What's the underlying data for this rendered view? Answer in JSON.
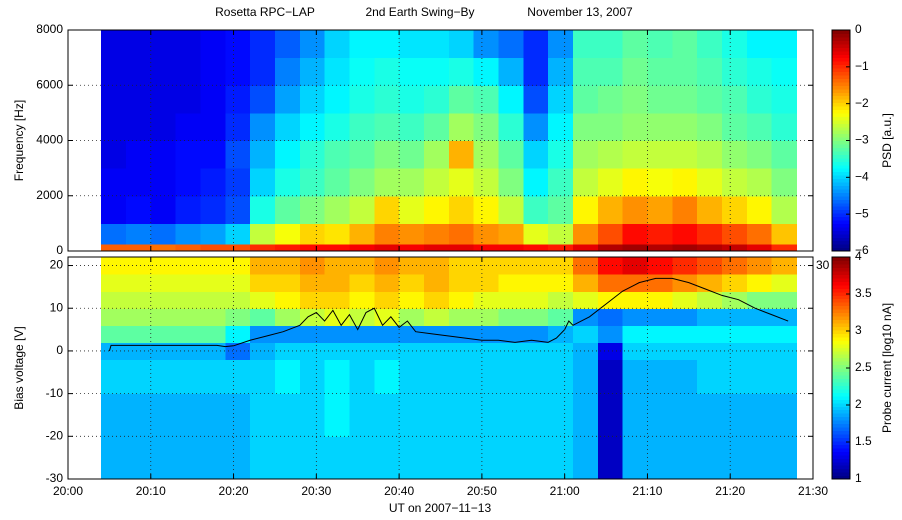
{
  "chart_data": [
    {
      "type": "heatmap",
      "title_parts": [
        "Rosetta RPC−LAP",
        "2nd Earth Swing−By",
        "November 13, 2007"
      ],
      "ylabel": "Frequency [Hz]",
      "colorbar_label": "PSD [a.u.]",
      "colormap": "jet",
      "grid": true,
      "xlim": [
        1200,
        1290
      ],
      "xticks": [
        1200,
        1210,
        1220,
        1230,
        1240,
        1250,
        1260,
        1270,
        1280,
        1290
      ],
      "ylim": [
        0,
        8000
      ],
      "yticks": [
        0,
        2000,
        4000,
        6000,
        8000
      ],
      "zlim": [
        -6,
        0
      ],
      "zticks": [
        0,
        {
          "value": -1,
          "label": "−1"
        },
        {
          "value": -2,
          "label": "−2"
        },
        {
          "value": -3,
          "label": "−3"
        },
        {
          "value": -4,
          "label": "−4"
        },
        {
          "value": -5,
          "label": "−5"
        },
        {
          "value": -6,
          "label": "−6"
        }
      ],
      "x_edges": [
        1204,
        1207,
        1210,
        1213,
        1216,
        1219,
        1222,
        1225,
        1228,
        1231,
        1234,
        1237,
        1240,
        1243,
        1246,
        1249,
        1252,
        1255,
        1258,
        1261,
        1264,
        1267,
        1270,
        1273,
        1276,
        1279,
        1282,
        1285,
        1288
      ],
      "y_edges": [
        0,
        250,
        1000,
        2000,
        3000,
        4000,
        5000,
        6000,
        7000,
        8000
      ],
      "z": [
        [
          -1.3,
          -4.6,
          -5.3,
          -5.3,
          -5.4,
          -5.4,
          -5.4,
          -5.4,
          -5.4
        ],
        [
          -1.3,
          -4.5,
          -5.2,
          -5.3,
          -5.3,
          -5.4,
          -5.4,
          -5.4,
          -5.4
        ],
        [
          -1.4,
          -4.6,
          -5.3,
          -5.3,
          -5.3,
          -5.4,
          -5.4,
          -5.4,
          -5.4
        ],
        [
          -1.3,
          -4.4,
          -5.1,
          -5.2,
          -5.2,
          -5.3,
          -5.4,
          -5.4,
          -5.4
        ],
        [
          -1.2,
          -4.3,
          -5.0,
          -5.1,
          -5.2,
          -5.3,
          -5.3,
          -5.3,
          -5.3
        ],
        [
          -1.2,
          -4.0,
          -4.8,
          -4.9,
          -4.8,
          -5.0,
          -5.1,
          -5.2,
          -5.2
        ],
        [
          -1.0,
          -2.6,
          -3.6,
          -4.0,
          -4.2,
          -4.4,
          -4.8,
          -5.0,
          -5.0
        ],
        [
          -0.9,
          -2.3,
          -3.2,
          -3.6,
          -3.8,
          -4.0,
          -4.3,
          -4.5,
          -4.7
        ],
        [
          -0.8,
          -2.0,
          -3.0,
          -3.4,
          -3.5,
          -3.8,
          -4.0,
          -4.2,
          -4.4
        ],
        [
          -0.8,
          -2.1,
          -2.8,
          -3.2,
          -3.3,
          -3.6,
          -3.8,
          -3.9,
          -4.0
        ],
        [
          -0.7,
          -1.8,
          -2.6,
          -3.0,
          -3.2,
          -3.4,
          -3.6,
          -3.7,
          -3.8
        ],
        [
          -0.6,
          -1.5,
          -2.0,
          -2.8,
          -3.0,
          -3.3,
          -3.5,
          -3.6,
          -3.8
        ],
        [
          -0.7,
          -1.6,
          -2.4,
          -2.8,
          -3.1,
          -3.4,
          -3.6,
          -3.7,
          -3.9
        ],
        [
          -0.6,
          -1.5,
          -2.2,
          -2.6,
          -2.8,
          -3.2,
          -3.5,
          -3.7,
          -3.9
        ],
        [
          -0.6,
          -1.4,
          -2.0,
          -2.4,
          -1.8,
          -2.8,
          -3.2,
          -3.6,
          -4.0
        ],
        [
          -0.7,
          -1.6,
          -2.2,
          -2.6,
          -2.8,
          -3.0,
          -3.3,
          -3.8,
          -4.4
        ],
        [
          -0.7,
          -1.7,
          -2.6,
          -3.0,
          -3.2,
          -3.5,
          -3.8,
          -4.2,
          -4.6
        ],
        [
          -0.8,
          -2.4,
          -3.4,
          -3.8,
          -4.0,
          -4.4,
          -4.8,
          -5.0,
          -5.0
        ],
        [
          -0.9,
          -2.6,
          -3.2,
          -3.4,
          -3.6,
          -3.8,
          -4.0,
          -4.2,
          -4.4
        ],
        [
          -0.6,
          -1.6,
          -2.2,
          -2.6,
          -2.8,
          -3.0,
          -3.2,
          -3.3,
          -3.4
        ],
        [
          -0.3,
          -1.2,
          -1.8,
          -2.4,
          -2.7,
          -3.0,
          -3.1,
          -3.3,
          -3.4
        ],
        [
          -0.2,
          -0.8,
          -1.6,
          -2.2,
          -2.6,
          -2.9,
          -3.0,
          -3.1,
          -3.2
        ],
        [
          -0.3,
          -0.9,
          -1.7,
          -2.3,
          -2.6,
          -2.9,
          -3.1,
          -3.2,
          -3.3
        ],
        [
          -0.2,
          -0.8,
          -1.5,
          -2.2,
          -2.6,
          -2.9,
          -3.1,
          -3.2,
          -3.2
        ],
        [
          -0.3,
          -1.0,
          -1.8,
          -2.4,
          -2.7,
          -3.0,
          -3.2,
          -3.3,
          -3.4
        ],
        [
          -0.4,
          -1.2,
          -2.0,
          -2.6,
          -2.9,
          -3.2,
          -3.3,
          -3.5,
          -3.6
        ],
        [
          -0.6,
          -1.4,
          -2.2,
          -2.7,
          -3.0,
          -3.3,
          -3.5,
          -3.6,
          -3.8
        ],
        [
          -1.0,
          -1.9,
          -2.7,
          -3.0,
          -3.2,
          -3.5,
          -3.6,
          -3.7,
          -3.8
        ]
      ]
    },
    {
      "type": "heatmap",
      "ylabel": "Bias voltage [V]",
      "xlabel": "UT on 2007−11−13",
      "colorbar_label": "Probe current [log10 nA]",
      "colormap": "jet",
      "grid": true,
      "xlim": [
        1200,
        1290
      ],
      "xticks": [
        {
          "value": 1200,
          "label": "20:00"
        },
        {
          "value": 1210,
          "label": "20:10"
        },
        {
          "value": 1220,
          "label": "20:20"
        },
        {
          "value": 1230,
          "label": "20:30"
        },
        {
          "value": 1240,
          "label": "20:40"
        },
        {
          "value": 1250,
          "label": "20:50"
        },
        {
          "value": 1260,
          "label": "21:00"
        },
        {
          "value": 1270,
          "label": "21:10"
        },
        {
          "value": 1280,
          "label": "21:20"
        },
        {
          "value": 1290,
          "label": "21:30"
        }
      ],
      "ylim": [
        -30,
        22
      ],
      "yticks": [
        -30,
        -20,
        -10,
        0,
        10,
        20
      ],
      "y2lim": [
        -30,
        30
      ],
      "y2ticks": [
        30
      ],
      "zlim": [
        1,
        4
      ],
      "zticks": [
        1,
        1.5,
        2,
        2.5,
        3,
        3.5,
        4
      ],
      "x_edges": [
        1204,
        1207,
        1210,
        1213,
        1216,
        1219,
        1222,
        1225,
        1228,
        1231,
        1234,
        1237,
        1240,
        1243,
        1246,
        1249,
        1252,
        1255,
        1258,
        1261,
        1264,
        1267,
        1270,
        1273,
        1276,
        1279,
        1282,
        1285,
        1288
      ],
      "y_edges": [
        -30,
        -20,
        -10,
        -2,
        2,
        6,
        10,
        14,
        18,
        22
      ],
      "z": [
        [
          1.9,
          1.9,
          2.0,
          1.9,
          2.4,
          2.6,
          2.7,
          2.8,
          2.9
        ],
        [
          1.9,
          1.9,
          2.0,
          1.9,
          2.4,
          2.6,
          2.7,
          2.8,
          2.9
        ],
        [
          1.9,
          1.9,
          2.0,
          1.9,
          2.4,
          2.6,
          2.7,
          2.8,
          2.9
        ],
        [
          1.9,
          1.9,
          2.0,
          1.9,
          2.4,
          2.6,
          2.7,
          2.8,
          2.9
        ],
        [
          1.9,
          1.9,
          2.0,
          1.9,
          2.4,
          2.6,
          2.7,
          2.8,
          2.9
        ],
        [
          1.9,
          1.9,
          2.0,
          1.7,
          2.1,
          2.5,
          2.7,
          2.8,
          2.9
        ],
        [
          2.0,
          2.0,
          2.0,
          1.9,
          1.8,
          2.4,
          2.8,
          3.0,
          3.1
        ],
        [
          2.0,
          2.0,
          2.1,
          2.0,
          1.8,
          2.6,
          2.9,
          3.0,
          3.1
        ],
        [
          2.0,
          2.0,
          2.0,
          2.0,
          1.8,
          2.7,
          3.0,
          3.1,
          3.2
        ],
        [
          2.0,
          2.1,
          2.1,
          2.0,
          1.8,
          2.8,
          3.0,
          3.1,
          3.1
        ],
        [
          2.0,
          2.0,
          2.0,
          2.0,
          1.8,
          2.7,
          2.9,
          3.0,
          3.1
        ],
        [
          2.0,
          2.0,
          2.1,
          2.0,
          1.8,
          2.8,
          3.0,
          3.1,
          3.2
        ],
        [
          2.0,
          2.0,
          2.0,
          2.0,
          1.8,
          2.6,
          2.9,
          3.0,
          3.1
        ],
        [
          2.0,
          2.0,
          2.0,
          2.0,
          1.8,
          2.7,
          3.0,
          3.1,
          3.1
        ],
        [
          2.0,
          2.0,
          2.0,
          2.0,
          1.8,
          2.6,
          2.9,
          3.0,
          3.0
        ],
        [
          2.0,
          2.0,
          2.0,
          2.0,
          1.8,
          2.6,
          2.8,
          3.0,
          3.0
        ],
        [
          2.0,
          2.0,
          2.0,
          2.0,
          1.8,
          2.5,
          2.8,
          2.9,
          3.0
        ],
        [
          2.0,
          2.0,
          2.0,
          2.0,
          1.8,
          2.5,
          2.8,
          2.9,
          3.0
        ],
        [
          2.0,
          2.0,
          2.0,
          2.0,
          1.9,
          2.4,
          2.7,
          2.9,
          3.0
        ],
        [
          1.9,
          1.9,
          1.9,
          1.9,
          2.0,
          1.8,
          2.8,
          3.1,
          3.3
        ],
        [
          1.2,
          1.2,
          1.2,
          1.3,
          1.8,
          1.7,
          2.9,
          3.3,
          3.6
        ],
        [
          1.9,
          1.9,
          1.9,
          2.0,
          2.1,
          1.8,
          2.9,
          3.3,
          3.7
        ],
        [
          1.9,
          1.9,
          1.9,
          2.0,
          2.1,
          1.8,
          2.9,
          3.3,
          3.6
        ],
        [
          1.9,
          1.9,
          1.9,
          2.0,
          2.1,
          1.8,
          2.8,
          3.2,
          3.5
        ],
        [
          1.9,
          1.9,
          2.0,
          2.0,
          2.1,
          1.9,
          2.7,
          3.1,
          3.4
        ],
        [
          1.9,
          1.9,
          2.0,
          2.0,
          2.1,
          1.9,
          2.6,
          3.0,
          3.3
        ],
        [
          1.9,
          1.9,
          2.0,
          2.0,
          2.1,
          1.9,
          2.5,
          2.9,
          3.2
        ],
        [
          1.9,
          1.9,
          2.0,
          2.0,
          2.1,
          1.9,
          2.5,
          2.8,
          3.1
        ]
      ],
      "series": [
        {
          "color": "#000000",
          "x": [
            1205,
            1205.2,
            1210,
            1215,
            1218,
            1219,
            1220,
            1222,
            1224,
            1226,
            1228,
            1229,
            1230,
            1231,
            1232,
            1233,
            1234,
            1235,
            1236,
            1237,
            1238,
            1239,
            1240,
            1241,
            1242,
            1244,
            1246,
            1248,
            1250,
            1252,
            1254,
            1256,
            1258,
            1259,
            1260,
            1260.5,
            1261,
            1263,
            1265,
            1267,
            1269,
            1271,
            1273,
            1275,
            1277,
            1279,
            1281,
            1283,
            1285,
            1287
          ],
          "values": [
            0,
            1.3,
            1.3,
            1.3,
            1.3,
            1,
            1.2,
            2.5,
            3.5,
            4.5,
            6,
            8,
            9,
            7,
            9.5,
            6,
            8.5,
            5,
            9,
            10,
            6,
            8,
            5.5,
            7,
            4.5,
            4,
            3.5,
            3,
            2.5,
            2.5,
            2,
            2.5,
            2,
            3,
            5,
            7,
            6,
            8,
            11,
            14,
            16,
            17,
            17,
            16,
            14.5,
            13,
            12,
            10,
            8.5,
            7
          ]
        }
      ]
    }
  ]
}
